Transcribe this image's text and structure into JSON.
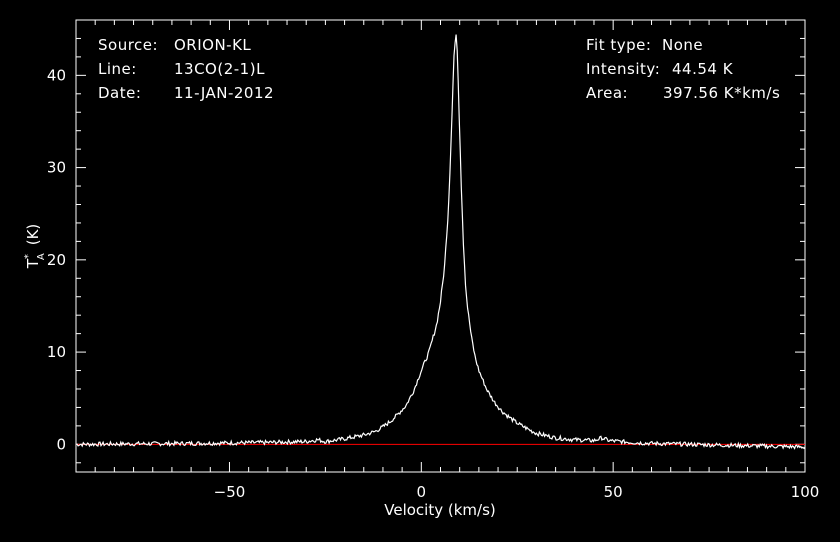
{
  "info_left": {
    "source_label": "Source:",
    "source_value": "ORION-KL",
    "line_label": "Line:",
    "line_value": "13CO(2-1)L",
    "date_label": "Date:",
    "date_value": "11-JAN-2012"
  },
  "info_right": {
    "fit_label": "Fit type:",
    "fit_value": "None",
    "intensity_label": "Intensity:",
    "intensity_value": "44.54 K",
    "area_label": "Area:",
    "area_value": "397.56 K*km/s"
  },
  "chart_data": {
    "type": "line",
    "xlabel": "Velocity (km/s)",
    "ylabel_main": "T",
    "ylabel_sup": "*",
    "ylabel_sub": "A",
    "ylabel_unit": "(K)",
    "xlim": [
      -90,
      100
    ],
    "ylim": [
      -3,
      46
    ],
    "xticks": [
      -50,
      0,
      50,
      100
    ],
    "xtick_labels": [
      "−50",
      "0",
      "50",
      "100"
    ],
    "yticks": [
      0,
      10,
      20,
      30,
      40
    ],
    "ytick_labels": [
      "0",
      "10",
      "20",
      "30",
      "40"
    ],
    "grid": false,
    "series": [
      {
        "color": "#ffffff",
        "x": [
          -90,
          -60,
          -40,
          -30,
          -27,
          -25,
          -20,
          -15,
          -12,
          -10,
          -8,
          -6,
          -4,
          -2,
          0,
          2,
          3,
          4,
          5,
          6,
          7,
          7.5,
          8,
          8.5,
          9,
          9.2,
          9.5,
          10,
          10.5,
          11,
          11.5,
          12,
          13,
          14,
          15,
          17,
          19,
          21,
          23,
          25,
          28,
          30,
          35,
          40,
          45,
          47,
          49,
          55,
          60,
          70,
          80,
          90,
          100
        ],
        "y": [
          0,
          0.1,
          0.2,
          0.3,
          0.5,
          0.3,
          0.6,
          1.0,
          1.4,
          1.9,
          2.5,
          3.3,
          4.2,
          5.8,
          8.0,
          10.0,
          11.5,
          13.0,
          15.5,
          19.0,
          25.0,
          30.0,
          36.0,
          42.0,
          44.54,
          44.2,
          41.0,
          34.0,
          27.0,
          21.5,
          17.5,
          15.0,
          11.8,
          9.5,
          8.0,
          6.0,
          4.6,
          3.6,
          2.9,
          2.3,
          1.6,
          1.2,
          0.7,
          0.5,
          0.4,
          0.7,
          0.4,
          0.2,
          0.1,
          0.0,
          -0.1,
          -0.2,
          -0.3
        ]
      }
    ],
    "baseline": {
      "color": "#ff0000",
      "y": 0
    }
  }
}
